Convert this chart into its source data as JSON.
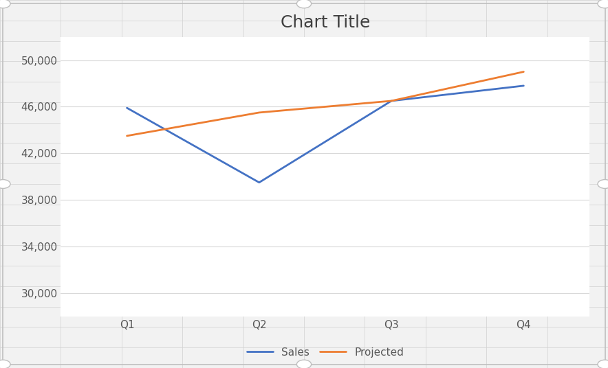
{
  "title": "Chart Title",
  "categories": [
    "Q1",
    "Q2",
    "Q3",
    "Q4"
  ],
  "series": [
    {
      "name": "Sales",
      "values": [
        45900,
        39500,
        46500,
        47800
      ],
      "color": "#4472C4",
      "linewidth": 2.0
    },
    {
      "name": "Projected",
      "values": [
        43500,
        45500,
        46500,
        49000
      ],
      "color": "#ED7D31",
      "linewidth": 2.0
    }
  ],
  "ylim": [
    28000,
    52000
  ],
  "yticks": [
    30000,
    34000,
    38000,
    42000,
    46000,
    50000
  ],
  "background_color": "#F2F2F2",
  "chart_bg": "#FFFFFF",
  "grid_color": "#D9D9D9",
  "title_fontsize": 18,
  "tick_fontsize": 11,
  "legend_fontsize": 11,
  "border_color": "#BFBFBF",
  "handle_color": "#BFBFBF",
  "tick_color": "#595959",
  "title_color": "#404040"
}
